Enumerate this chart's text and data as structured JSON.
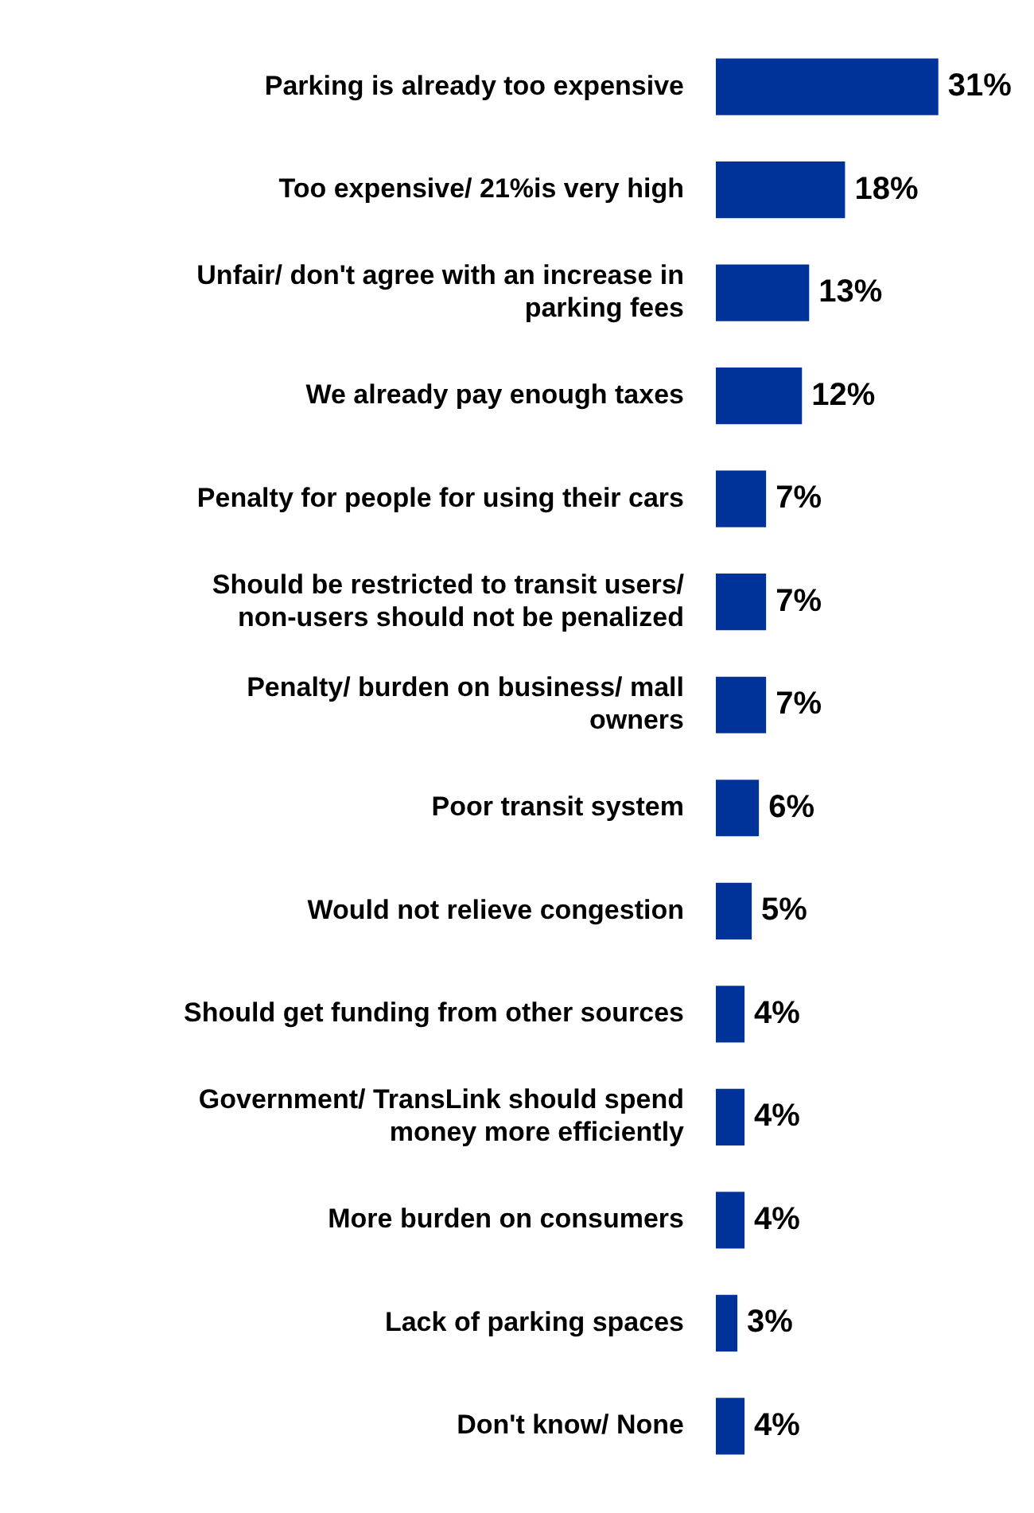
{
  "chart_data": {
    "type": "bar",
    "orientation": "horizontal",
    "categories": [
      "Parking is already too expensive",
      "Too expensive/ 21%is very high",
      "Unfair/ don't agree with an increase in parking fees",
      "We already pay enough taxes",
      "Penalty for people for using their cars",
      "Should be restricted to transit users/ non-users should not be penalized",
      "Penalty/ burden on business/ mall owners",
      "Poor transit system",
      "Would not relieve congestion",
      "Should get funding from other sources",
      "Government/ TransLink should spend money more efficiently",
      "More burden on consumers",
      "Lack of parking spaces",
      "Don't know/ None"
    ],
    "values": [
      31,
      18,
      13,
      12,
      7,
      7,
      7,
      6,
      5,
      4,
      4,
      4,
      3,
      4
    ],
    "value_labels": [
      "31%",
      "18%",
      "13%",
      "12%",
      "7%",
      "7%",
      "7%",
      "6%",
      "5%",
      "4%",
      "4%",
      "4%",
      "3%",
      "4%"
    ],
    "color": "#003399",
    "legend": false
  }
}
